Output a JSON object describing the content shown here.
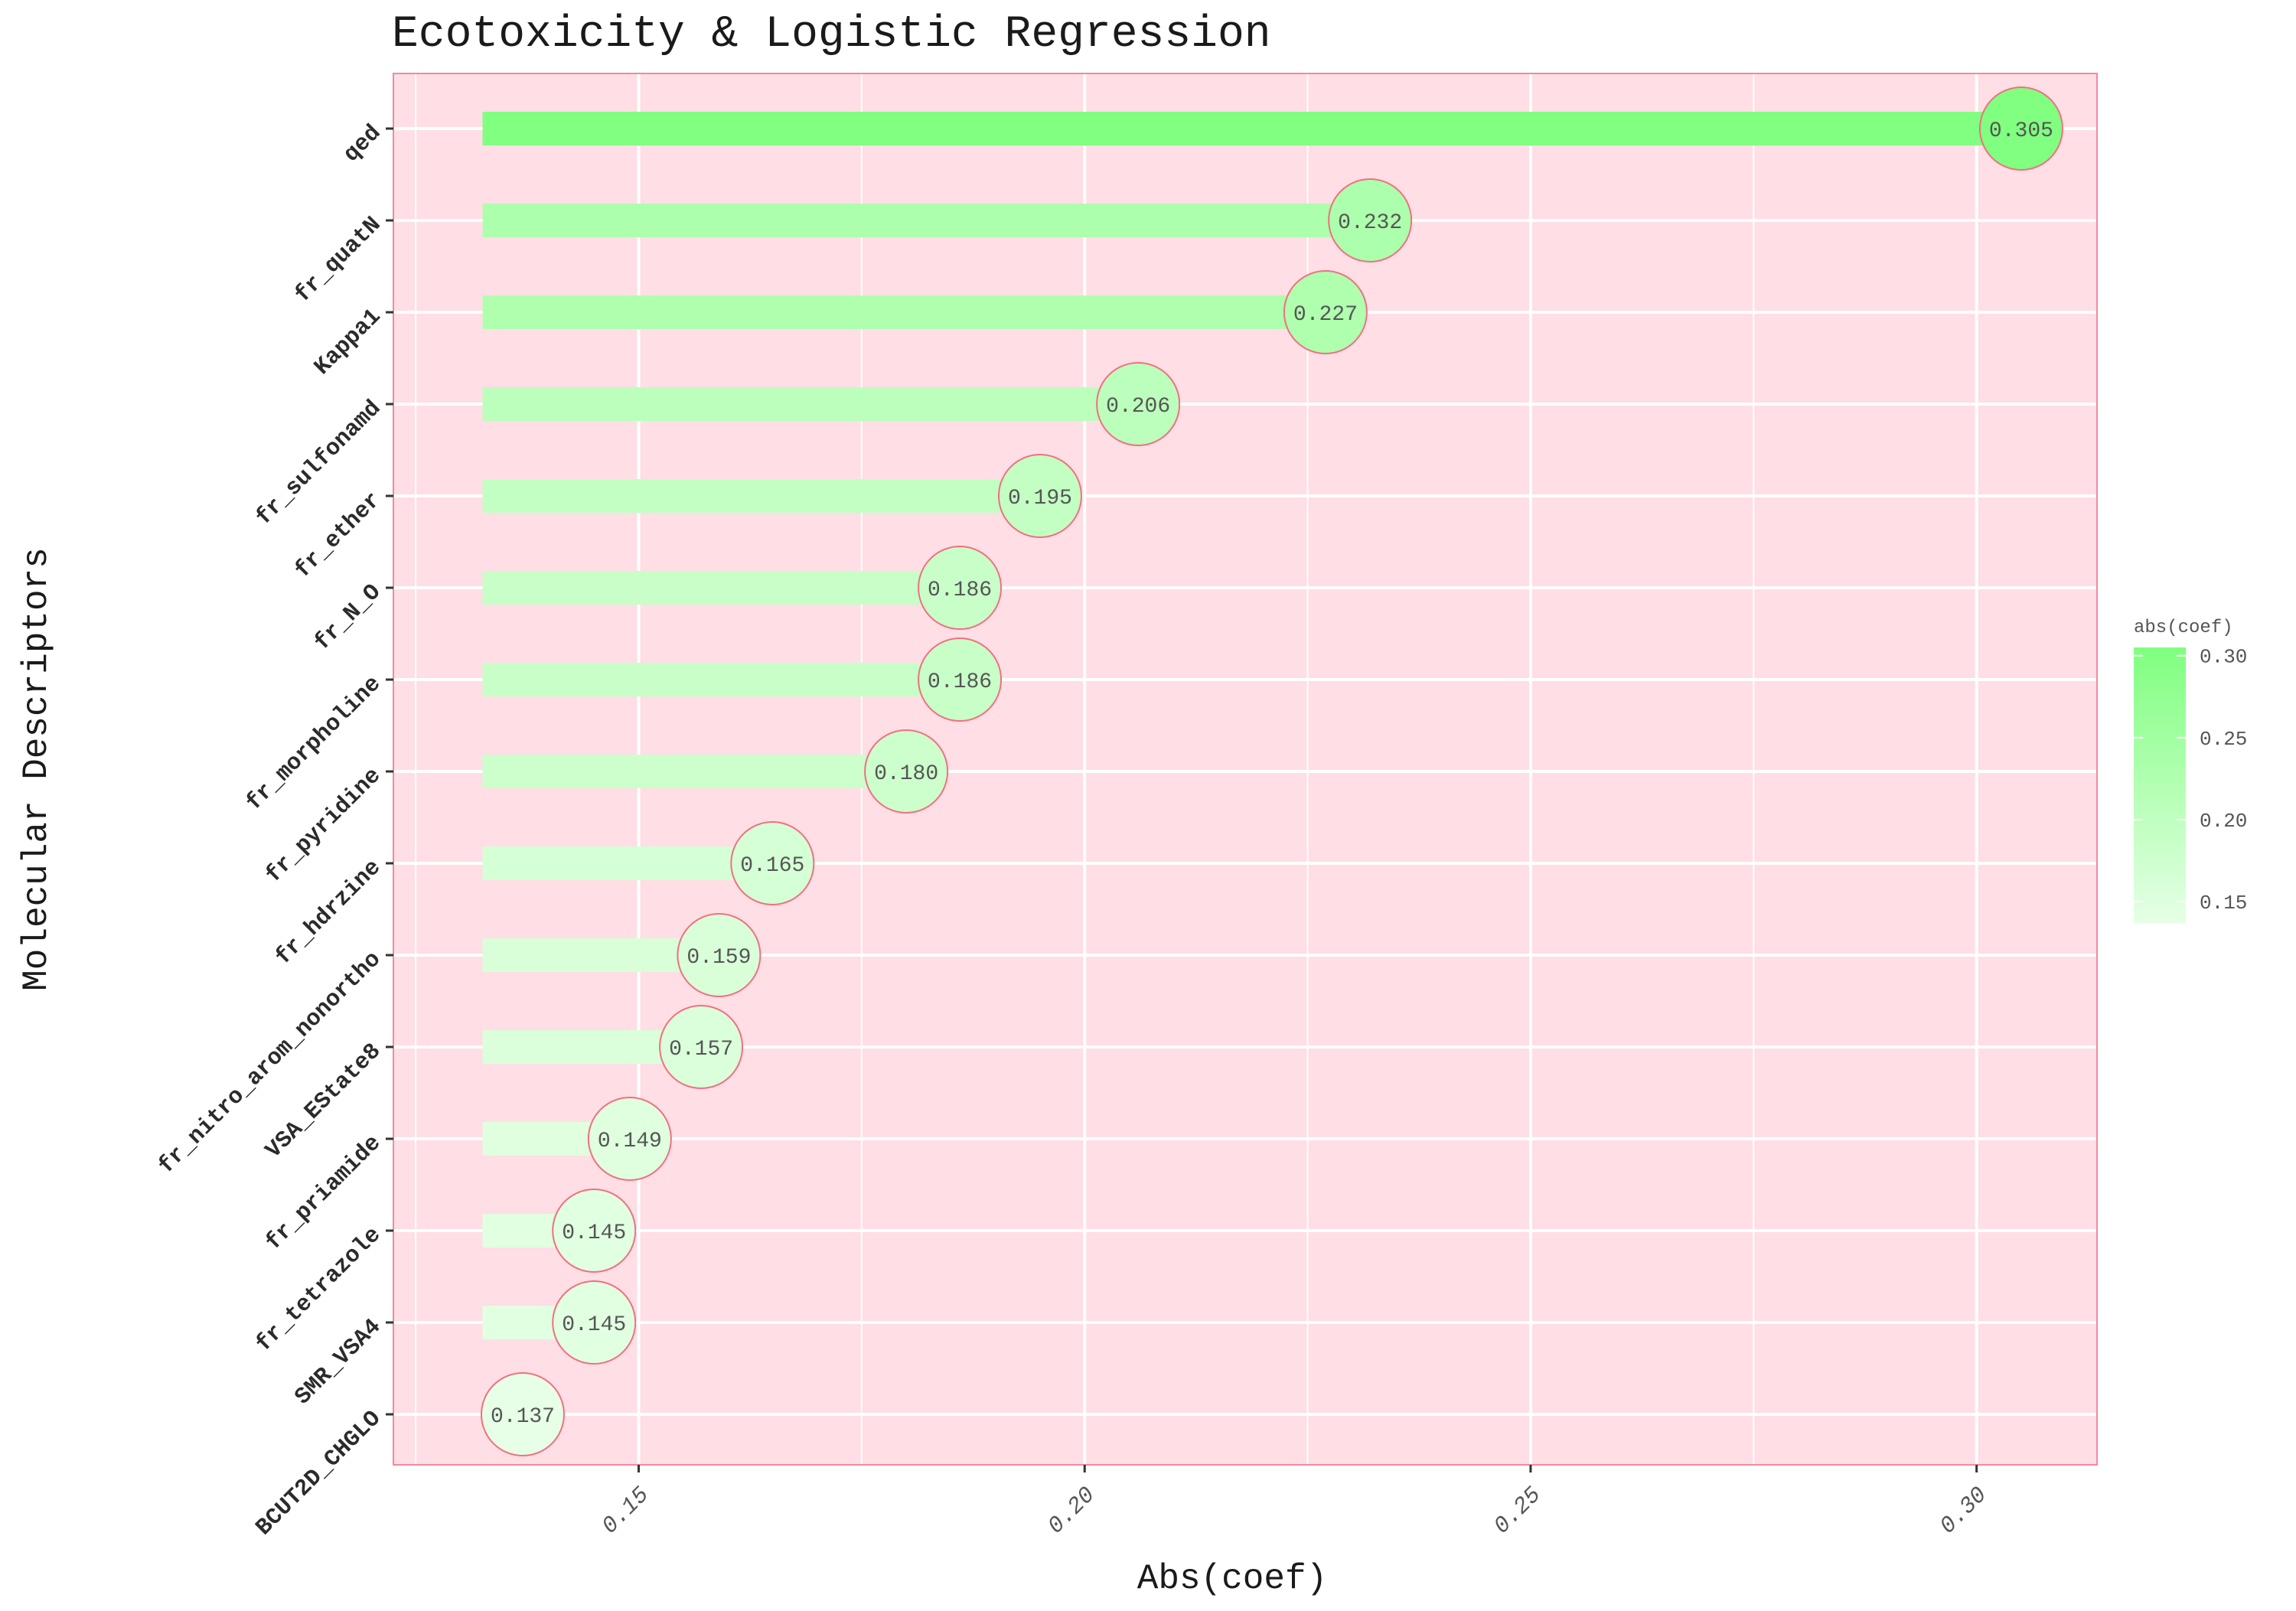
{
  "chart_data": {
    "type": "bar",
    "orientation": "horizontal",
    "title": "Ecotoxicity & Logistic Regression",
    "xlabel": "Abs(coef)",
    "ylabel": "Molecular Descriptors",
    "categories": [
      "qed",
      "fr_quatN",
      "Kappa1",
      "fr_sulfonamd",
      "fr_ether",
      "fr_N_O",
      "fr_morpholine",
      "fr_pyridine",
      "fr_hdrzine",
      "fr_nitro_arom_nonortho",
      "VSA_EState8",
      "fr_priamide",
      "fr_tetrazole",
      "SMR_VSA4",
      "BCUT2D_CHGLO"
    ],
    "values": [
      0.305,
      0.232,
      0.227,
      0.206,
      0.195,
      0.186,
      0.186,
      0.18,
      0.165,
      0.159,
      0.157,
      0.149,
      0.145,
      0.145,
      0.137
    ],
    "value_labels": [
      "0.305",
      "0.232",
      "0.227",
      "0.206",
      "0.195",
      "0.186",
      "0.186",
      "0.180",
      "0.165",
      "0.159",
      "0.157",
      "0.149",
      "0.145",
      "0.145",
      "0.137"
    ],
    "bar_start": 0.1325,
    "xlim": [
      0.1225,
      0.3135
    ],
    "xticks": [
      "0.15",
      "0.20",
      "0.25",
      "0.30"
    ],
    "xtick_values": [
      0.15,
      0.2,
      0.25,
      0.3
    ],
    "grid": true,
    "legend": {
      "title": "abs(coef)",
      "position": "right",
      "ticks": [
        "0.30",
        "0.25",
        "0.20",
        "0.15"
      ],
      "tick_values": [
        0.3,
        0.25,
        0.2,
        0.15
      ],
      "range": [
        0.137,
        0.305
      ]
    },
    "colors": {
      "panel_background": "#ffdee5",
      "panel_border": "#f08a9f",
      "gridline": "#ffffff",
      "bar_low": "#e6ffe6",
      "bar_high": "#80ff80",
      "marker_stroke": "#f07080"
    }
  }
}
